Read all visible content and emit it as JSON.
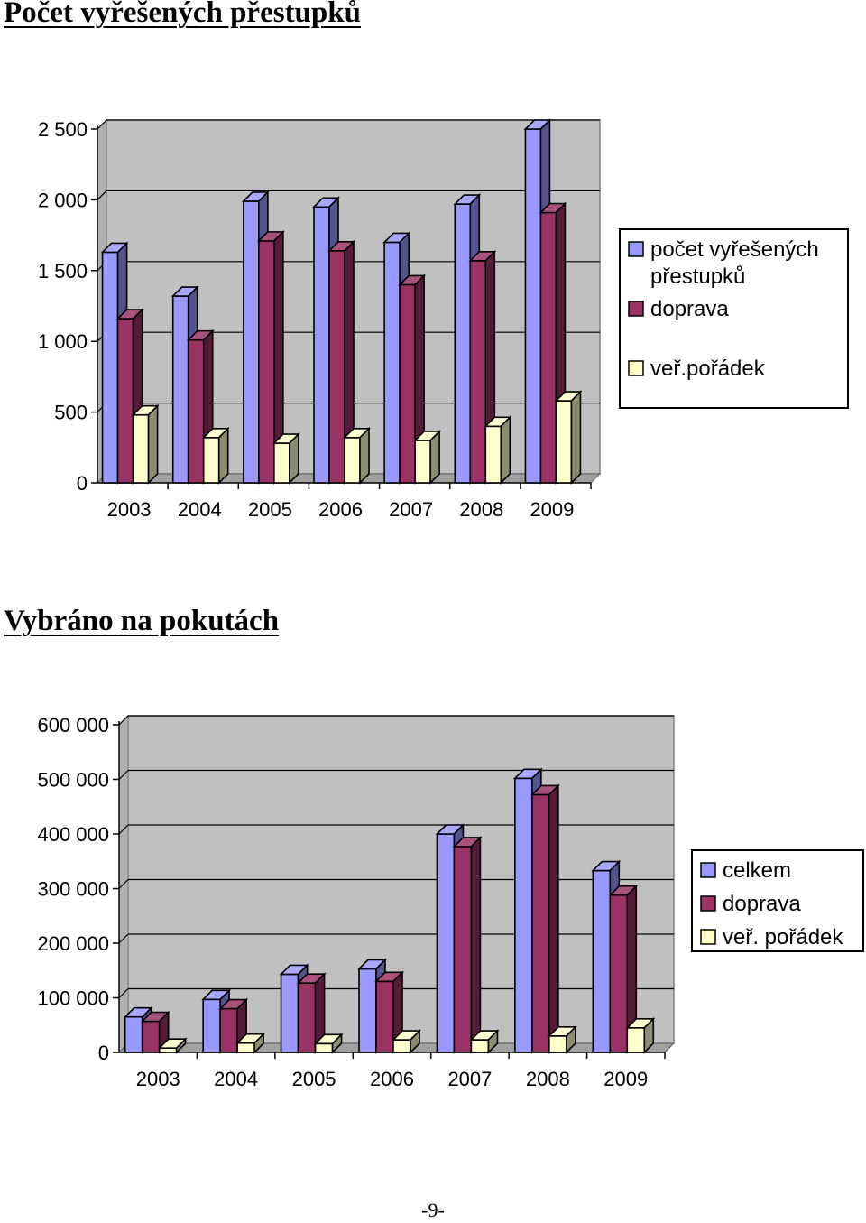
{
  "page": {
    "number_label": "-9-"
  },
  "charts_meta": [
    {
      "heading": "Počet vyřešených přestupků"
    },
    {
      "heading": "Vybráno na pokutách"
    }
  ],
  "chart_data": [
    {
      "type": "bar",
      "title": "Počet vyřešených přestupků",
      "xlabel": "",
      "ylabel": "",
      "categories": [
        "2003",
        "2004",
        "2005",
        "2006",
        "2007",
        "2008",
        "2009"
      ],
      "series": [
        {
          "name": "počet vyřešených přestupků",
          "legend_lines": [
            "počet vyřešených",
            "přestupků"
          ],
          "color": "#9999ff",
          "values": [
            1630,
            1320,
            1990,
            1950,
            1700,
            1970,
            2500
          ]
        },
        {
          "name": "doprava",
          "legend_lines": [
            "doprava"
          ],
          "color": "#993366",
          "values": [
            1160,
            1010,
            1710,
            1640,
            1400,
            1570,
            1910
          ]
        },
        {
          "name": "veř.pořádek",
          "legend_lines": [
            "veř.pořádek"
          ],
          "color": "#ffffcc",
          "values": [
            480,
            320,
            280,
            320,
            300,
            400,
            580
          ]
        }
      ],
      "y_ticks": [
        0,
        500,
        1000,
        1500,
        2000,
        2500
      ],
      "y_tick_labels": [
        "0",
        "500",
        "1 000",
        "1 500",
        "2 000",
        "2 500"
      ],
      "ylim": [
        0,
        2500
      ],
      "grid": true,
      "legend_position": "right"
    },
    {
      "type": "bar",
      "title": "Vybráno na pokutách",
      "xlabel": "",
      "ylabel": "",
      "categories": [
        "2003",
        "2004",
        "2005",
        "2006",
        "2007",
        "2008",
        "2009"
      ],
      "series": [
        {
          "name": "celkem",
          "legend_lines": [
            "celkem"
          ],
          "color": "#9999ff",
          "values": [
            65000,
            97000,
            143000,
            153000,
            400000,
            502000,
            333000
          ]
        },
        {
          "name": "doprava",
          "legend_lines": [
            "doprava"
          ],
          "color": "#993366",
          "values": [
            57000,
            80000,
            127000,
            130000,
            377000,
            472000,
            288000
          ]
        },
        {
          "name": "veř. pořádek",
          "legend_lines": [
            "veř. pořádek"
          ],
          "color": "#ffffcc",
          "values": [
            8000,
            17000,
            16000,
            23000,
            23000,
            30000,
            45000
          ]
        }
      ],
      "y_ticks": [
        0,
        100000,
        200000,
        300000,
        400000,
        500000,
        600000
      ],
      "y_tick_labels": [
        "0",
        "100 000",
        "200 000",
        "300 000",
        "400 000",
        "500 000",
        "600 000"
      ],
      "ylim": [
        0,
        600000
      ],
      "grid": true,
      "legend_position": "right"
    }
  ]
}
